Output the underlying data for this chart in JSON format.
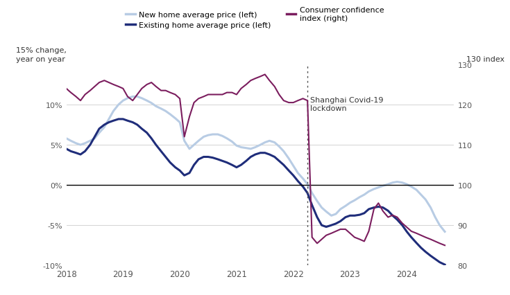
{
  "background_color": "#ffffff",
  "grid_color": "#cccccc",
  "lockdown_x": 2022.25,
  "lockdown_label": "Shanghai Covid-19\nlockdown",
  "new_home_color": "#b8cce4",
  "existing_home_color": "#1f2d7a",
  "consumer_conf_color": "#7b1d5e",
  "new_home_label": "New home average price (left)",
  "existing_home_label": "Existing home average price (left)",
  "consumer_conf_label": "Consumer confidence\nindex (right)",
  "ylim_left": [
    -10,
    15
  ],
  "ylim_right": [
    80,
    130
  ],
  "yticks_left": [
    -10,
    -5,
    0,
    5,
    10
  ],
  "ytick_labels_left": [
    "-10%",
    "-5%",
    "0%",
    "5%",
    "10%"
  ],
  "yticks_right": [
    80,
    90,
    100,
    110,
    120,
    130
  ],
  "ytick_labels_right": [
    "80",
    "90",
    "100",
    "110",
    "120",
    "130"
  ],
  "xlim": [
    2018.0,
    2024.83
  ],
  "xticks": [
    2018,
    2019,
    2020,
    2021,
    2022,
    2023,
    2024
  ],
  "ylabel_left": "15% change,\nyear on year",
  "ylabel_right": "130 index",
  "new_home_x": [
    2018.0,
    2018.08,
    2018.17,
    2018.25,
    2018.33,
    2018.42,
    2018.5,
    2018.58,
    2018.67,
    2018.75,
    2018.83,
    2018.92,
    2019.0,
    2019.08,
    2019.17,
    2019.25,
    2019.33,
    2019.42,
    2019.5,
    2019.58,
    2019.67,
    2019.75,
    2019.83,
    2019.92,
    2020.0,
    2020.08,
    2020.17,
    2020.25,
    2020.33,
    2020.42,
    2020.5,
    2020.58,
    2020.67,
    2020.75,
    2020.83,
    2020.92,
    2021.0,
    2021.08,
    2021.17,
    2021.25,
    2021.33,
    2021.42,
    2021.5,
    2021.58,
    2021.67,
    2021.75,
    2021.83,
    2021.92,
    2022.0,
    2022.08,
    2022.17,
    2022.25,
    2022.33,
    2022.42,
    2022.5,
    2022.58,
    2022.67,
    2022.75,
    2022.83,
    2022.92,
    2023.0,
    2023.08,
    2023.17,
    2023.25,
    2023.33,
    2023.42,
    2023.5,
    2023.58,
    2023.67,
    2023.75,
    2023.83,
    2023.92,
    2024.0,
    2024.08,
    2024.17,
    2024.25,
    2024.33,
    2024.42,
    2024.5,
    2024.58,
    2024.67
  ],
  "new_home_y": [
    5.8,
    5.5,
    5.2,
    5.0,
    5.2,
    5.5,
    5.8,
    6.5,
    7.2,
    8.2,
    9.2,
    10.0,
    10.5,
    10.8,
    11.0,
    11.0,
    10.8,
    10.5,
    10.2,
    9.8,
    9.5,
    9.2,
    8.8,
    8.3,
    7.8,
    5.5,
    4.5,
    5.0,
    5.5,
    6.0,
    6.2,
    6.3,
    6.3,
    6.1,
    5.8,
    5.4,
    4.9,
    4.7,
    4.6,
    4.5,
    4.7,
    5.0,
    5.3,
    5.5,
    5.3,
    4.8,
    4.2,
    3.3,
    2.4,
    1.5,
    0.8,
    0.1,
    -1.0,
    -2.0,
    -2.8,
    -3.3,
    -3.8,
    -3.6,
    -3.0,
    -2.6,
    -2.2,
    -1.9,
    -1.5,
    -1.2,
    -0.8,
    -0.5,
    -0.3,
    -0.1,
    0.1,
    0.3,
    0.4,
    0.3,
    0.1,
    -0.2,
    -0.6,
    -1.2,
    -1.8,
    -2.8,
    -4.0,
    -5.0,
    -5.8
  ],
  "existing_home_x": [
    2018.0,
    2018.08,
    2018.17,
    2018.25,
    2018.33,
    2018.42,
    2018.5,
    2018.58,
    2018.67,
    2018.75,
    2018.83,
    2018.92,
    2019.0,
    2019.08,
    2019.17,
    2019.25,
    2019.33,
    2019.42,
    2019.5,
    2019.58,
    2019.67,
    2019.75,
    2019.83,
    2019.92,
    2020.0,
    2020.08,
    2020.17,
    2020.25,
    2020.33,
    2020.42,
    2020.5,
    2020.58,
    2020.67,
    2020.75,
    2020.83,
    2020.92,
    2021.0,
    2021.08,
    2021.17,
    2021.25,
    2021.33,
    2021.42,
    2021.5,
    2021.58,
    2021.67,
    2021.75,
    2021.83,
    2021.92,
    2022.0,
    2022.08,
    2022.17,
    2022.25,
    2022.33,
    2022.42,
    2022.5,
    2022.58,
    2022.67,
    2022.75,
    2022.83,
    2022.92,
    2023.0,
    2023.08,
    2023.17,
    2023.25,
    2023.33,
    2023.42,
    2023.5,
    2023.58,
    2023.67,
    2023.75,
    2023.83,
    2023.92,
    2024.0,
    2024.08,
    2024.17,
    2024.25,
    2024.33,
    2024.42,
    2024.5,
    2024.58,
    2024.67
  ],
  "existing_home_y": [
    4.5,
    4.2,
    4.0,
    3.8,
    4.2,
    5.0,
    6.0,
    7.0,
    7.5,
    7.8,
    8.0,
    8.2,
    8.2,
    8.0,
    7.8,
    7.5,
    7.0,
    6.5,
    5.8,
    5.0,
    4.2,
    3.5,
    2.8,
    2.2,
    1.8,
    1.2,
    1.5,
    2.5,
    3.2,
    3.5,
    3.5,
    3.4,
    3.2,
    3.0,
    2.8,
    2.5,
    2.2,
    2.5,
    3.0,
    3.5,
    3.8,
    4.0,
    4.0,
    3.8,
    3.5,
    3.0,
    2.5,
    1.8,
    1.2,
    0.5,
    -0.2,
    -1.0,
    -2.5,
    -4.0,
    -5.0,
    -5.2,
    -5.0,
    -4.8,
    -4.5,
    -4.0,
    -3.8,
    -3.8,
    -3.7,
    -3.5,
    -3.0,
    -2.8,
    -2.7,
    -2.8,
    -3.2,
    -3.8,
    -4.3,
    -5.0,
    -5.8,
    -6.5,
    -7.2,
    -7.8,
    -8.3,
    -8.8,
    -9.2,
    -9.6,
    -9.9
  ],
  "consumer_conf_x": [
    2018.0,
    2018.08,
    2018.17,
    2018.25,
    2018.33,
    2018.42,
    2018.5,
    2018.58,
    2018.67,
    2018.75,
    2018.83,
    2018.92,
    2019.0,
    2019.08,
    2019.17,
    2019.25,
    2019.33,
    2019.42,
    2019.5,
    2019.58,
    2019.67,
    2019.75,
    2019.83,
    2019.92,
    2020.0,
    2020.08,
    2020.17,
    2020.25,
    2020.33,
    2020.42,
    2020.5,
    2020.58,
    2020.67,
    2020.75,
    2020.83,
    2020.92,
    2021.0,
    2021.08,
    2021.17,
    2021.25,
    2021.33,
    2021.42,
    2021.5,
    2021.58,
    2021.67,
    2021.75,
    2021.83,
    2021.92,
    2022.0,
    2022.08,
    2022.17,
    2022.25,
    2022.33,
    2022.42,
    2022.5,
    2022.58,
    2022.67,
    2022.75,
    2022.83,
    2022.92,
    2023.0,
    2023.08,
    2023.17,
    2023.25,
    2023.33,
    2023.42,
    2023.5,
    2023.58,
    2023.67,
    2023.75,
    2023.83,
    2023.92,
    2024.0,
    2024.08,
    2024.17,
    2024.25,
    2024.33,
    2024.42,
    2024.5,
    2024.58,
    2024.67
  ],
  "consumer_conf_y": [
    124.0,
    123.0,
    122.0,
    121.0,
    122.5,
    123.5,
    124.5,
    125.5,
    126.0,
    125.5,
    125.0,
    124.5,
    124.0,
    122.0,
    121.0,
    122.5,
    124.0,
    125.0,
    125.5,
    124.5,
    123.5,
    123.5,
    123.0,
    122.5,
    121.5,
    112.0,
    117.0,
    120.5,
    121.5,
    122.0,
    122.5,
    122.5,
    122.5,
    122.5,
    123.0,
    123.0,
    122.5,
    124.0,
    125.0,
    126.0,
    126.5,
    127.0,
    127.5,
    126.0,
    124.5,
    122.5,
    121.0,
    120.5,
    120.5,
    121.0,
    121.5,
    121.0,
    87.0,
    85.5,
    86.5,
    87.5,
    88.0,
    88.5,
    89.0,
    89.0,
    88.0,
    87.0,
    86.5,
    86.0,
    88.5,
    94.0,
    95.5,
    93.5,
    92.0,
    92.5,
    92.0,
    90.5,
    89.5,
    88.5,
    88.0,
    87.5,
    87.0,
    86.5,
    86.0,
    85.5,
    85.0
  ]
}
